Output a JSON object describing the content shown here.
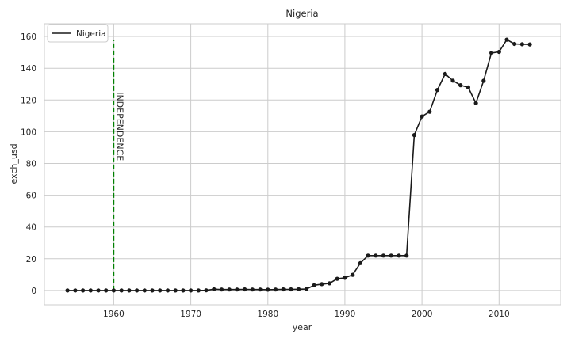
{
  "chart_data": {
    "type": "line",
    "title": "Nigeria",
    "xlabel": "year",
    "ylabel": "exch_usd",
    "xlim": [
      1951,
      2018
    ],
    "ylim": [
      -9,
      168
    ],
    "xticks": [
      1960,
      1970,
      1980,
      1990,
      2000,
      2010
    ],
    "yticks": [
      0,
      20,
      40,
      60,
      80,
      100,
      120,
      140,
      160
    ],
    "grid": true,
    "legend_position": "top-left",
    "series": [
      {
        "name": "Nigeria",
        "color": "#1a1a1a",
        "marker": "circle",
        "x": [
          1954,
          1955,
          1956,
          1957,
          1958,
          1959,
          1960,
          1961,
          1962,
          1963,
          1964,
          1965,
          1966,
          1967,
          1968,
          1969,
          1970,
          1971,
          1972,
          1973,
          1974,
          1975,
          1976,
          1977,
          1978,
          1979,
          1980,
          1981,
          1982,
          1983,
          1984,
          1985,
          1986,
          1987,
          1988,
          1989,
          1990,
          1991,
          1992,
          1993,
          1994,
          1995,
          1996,
          1997,
          1998,
          1999,
          2000,
          2001,
          2002,
          2003,
          2004,
          2005,
          2006,
          2007,
          2008,
          2009,
          2010,
          2011,
          2012,
          2013,
          2014
        ],
        "y": [
          0,
          0,
          0,
          0,
          0,
          0,
          0,
          0,
          0,
          0,
          0,
          0,
          0,
          0,
          0,
          0,
          0,
          0,
          0.1,
          0.8,
          0.6,
          0.6,
          0.6,
          0.7,
          0.6,
          0.6,
          0.5,
          0.6,
          0.7,
          0.7,
          0.8,
          0.9,
          3.3,
          4.0,
          4.5,
          7.4,
          8.0,
          9.9,
          17.3,
          22.0,
          22.0,
          22.0,
          22.0,
          22.0,
          22.0,
          97.9,
          109.6,
          112.6,
          126.3,
          136.4,
          132.2,
          129.3,
          127.9,
          118.0,
          132.1,
          149.6,
          150.3,
          158.0,
          155.3,
          155.1,
          155.0
        ]
      }
    ],
    "annotations": [
      {
        "type": "vline",
        "x": 1960,
        "y_from": 0,
        "y_to": 158,
        "color": "#008000",
        "style": "dashed"
      },
      {
        "type": "text",
        "text": "INDEPENDENCE",
        "x": 1960,
        "y_top": 125,
        "rotation": 90
      }
    ]
  }
}
